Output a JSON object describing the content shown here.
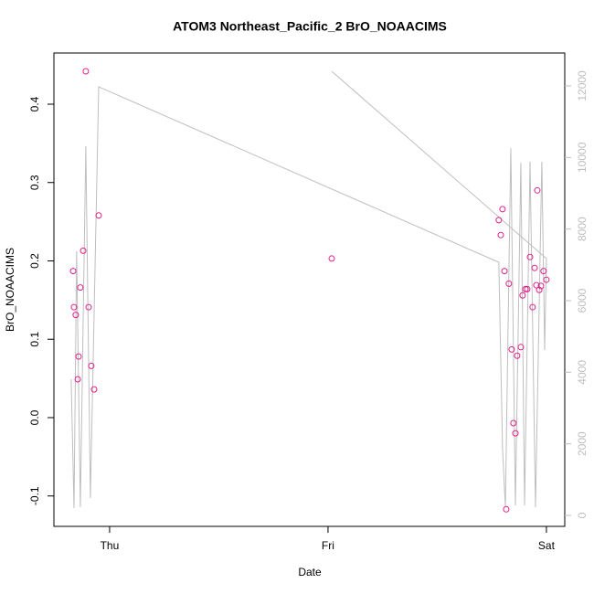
{
  "chart_data": {
    "type": "scatter",
    "title": "ATOM3 Northeast_Pacific_2 BrO_NOAACIMS",
    "xlabel": "Date",
    "ylabel": "BrO_NOAACIMS",
    "xlim": [
      -0.255,
      2.084
    ],
    "xticks": [
      {
        "value": 0,
        "label": "Thu"
      },
      {
        "value": 1,
        "label": "Fri"
      },
      {
        "value": 2,
        "label": "Sat"
      }
    ],
    "ylim": [
      -0.1388,
      0.4653
    ],
    "yticks": [
      -0.1,
      {
        "value": 0,
        "label": "0.0"
      },
      0.1,
      0.2,
      0.3,
      0.4
    ],
    "y2lim": [
      -306,
      12918
    ],
    "y2ticks": [
      0,
      2000,
      4000,
      6000,
      8000,
      10000,
      12000
    ],
    "y2color": "#bebebe",
    "series": [
      {
        "type": "scatter",
        "color": "#e0218a",
        "x": [
          -0.167,
          -0.163,
          -0.155,
          -0.146,
          -0.142,
          -0.134,
          -0.121,
          -0.109,
          -0.096,
          -0.084,
          -0.071,
          -0.05,
          1.017,
          1.782,
          1.799,
          1.791,
          1.808,
          1.816,
          1.828,
          1.841,
          1.849,
          1.858,
          1.866,
          1.883,
          1.891,
          1.904,
          1.912,
          1.925,
          1.937,
          1.946,
          1.954,
          1.958,
          1.967,
          1.975,
          1.987,
          2.0
        ],
        "values": [
          0.187,
          0.141,
          0.131,
          0.049,
          0.078,
          0.166,
          0.213,
          0.442,
          0.141,
          0.066,
          0.036,
          0.258,
          0.203,
          0.252,
          0.266,
          0.233,
          0.187,
          -0.117,
          0.171,
          0.087,
          -0.007,
          -0.02,
          0.079,
          0.09,
          0.156,
          0.164,
          0.164,
          0.205,
          0.141,
          0.191,
          0.169,
          0.29,
          0.163,
          0.168,
          0.187,
          0.176
        ]
      },
      {
        "type": "line",
        "axis": "y2",
        "color": "#bebebe",
        "x": [
          -0.176,
          -0.163,
          -0.151,
          -0.134,
          -0.109,
          -0.088,
          -0.05,
          1.782,
          1.799,
          1.812,
          1.837,
          1.858,
          1.883,
          1.9,
          1.925,
          1.95,
          1.979,
          1.992,
          2.0,
          null,
          1.017,
          2.0
        ],
        "values": [
          3804,
          204,
          7378,
          230,
          10314,
          485,
          11974,
          7072,
          1889,
          230,
          10263,
          281,
          9855,
          281,
          9880,
          230,
          9880,
          4621,
          7174,
          null,
          12408,
          7174
        ]
      }
    ]
  }
}
